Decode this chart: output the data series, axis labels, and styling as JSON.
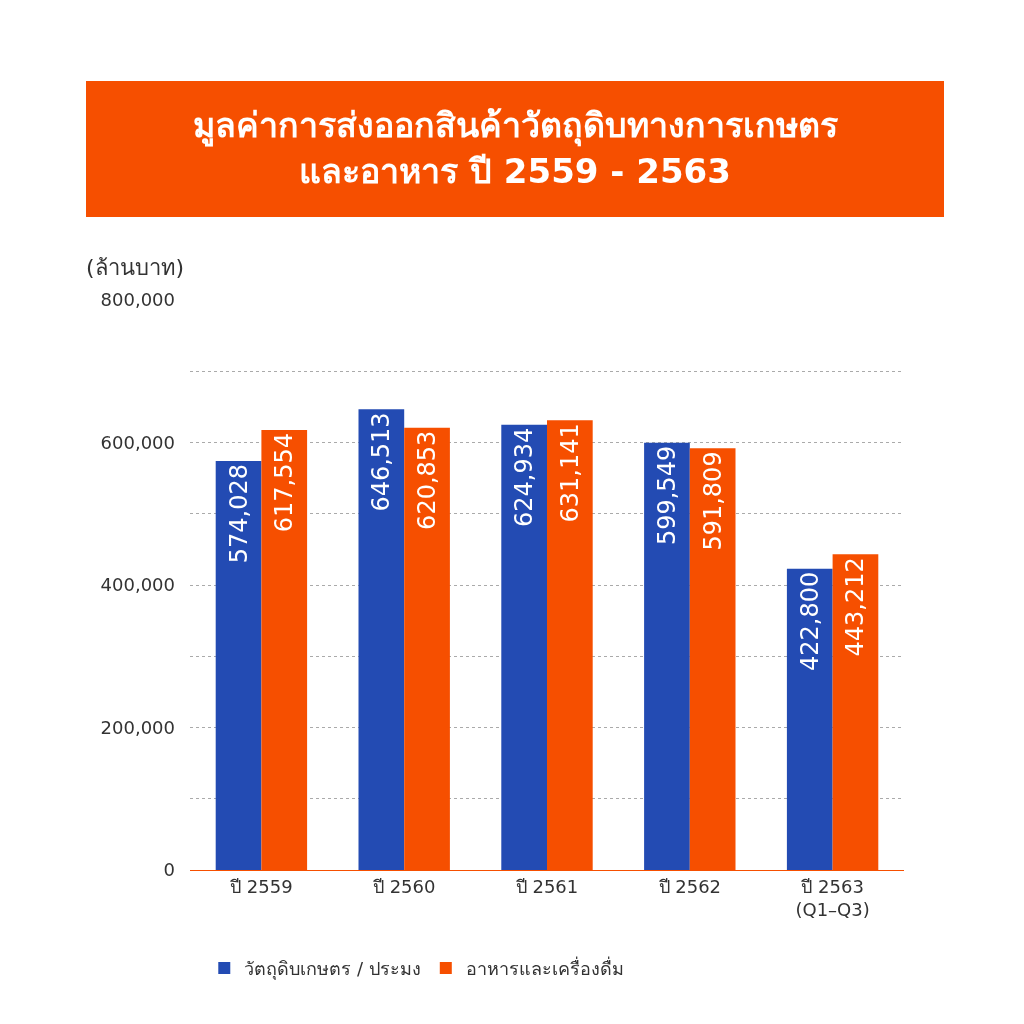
{
  "chart_data": {
    "type": "bar",
    "title": "มูลค่าการส่งออกสินค้าวัตถุดิบทางการเกษตร\nและอาหาร ปี 2559 - 2563",
    "ylabel": "(ล้านบาท)",
    "categories": [
      "ปี 2559",
      "ปี 2560",
      "ปี 2561",
      "ปี 2562",
      "ปี 2563\n(Q1–Q3)"
    ],
    "series": [
      {
        "name": "วัตถุดิบเกษตร / ประมง",
        "color": "#234bb3",
        "values": [
          574028,
          646513,
          624934,
          599549,
          422800
        ],
        "value_labels": [
          "574,028",
          "646,513",
          "624,934",
          "599,549",
          "422,800"
        ]
      },
      {
        "name": "อาหารและเครื่องดื่ม",
        "color": "#f64f00",
        "values": [
          617554,
          620853,
          631141,
          591809,
          443212
        ],
        "value_labels": [
          "617,554",
          "620,853",
          "631,141",
          "591,809",
          "443,212"
        ]
      }
    ],
    "ylim": [
      0,
      800000
    ],
    "yticks": [
      {
        "value": 0,
        "label": "0"
      },
      {
        "value": 100000,
        "label": null
      },
      {
        "value": 200000,
        "label": "200,000"
      },
      {
        "value": 300000,
        "label": null
      },
      {
        "value": 400000,
        "label": "400,000"
      },
      {
        "value": 500000,
        "label": null
      },
      {
        "value": 600000,
        "label": "600,000"
      },
      {
        "value": 700000,
        "label": null
      },
      {
        "value": 800000,
        "label": "800,000"
      }
    ],
    "grid": "y",
    "legend": "bottom"
  }
}
